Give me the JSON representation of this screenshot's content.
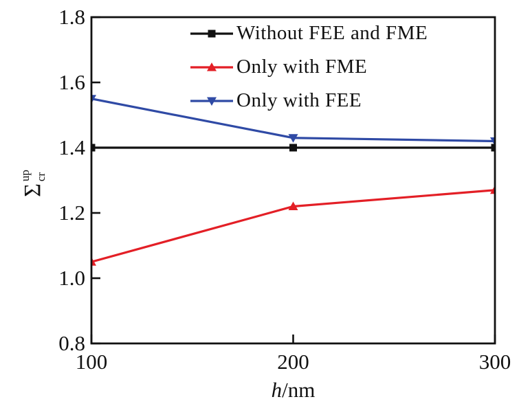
{
  "figure": {
    "background": "#ffffff",
    "text_color": "#111111"
  },
  "labels": {
    "xlabel_var": "h",
    "xlabel_unit": "/nm",
    "ylabel_base": "Σ",
    "ylabel_sup": "up",
    "ylabel_sub": "cr"
  },
  "chart_data": {
    "type": "line",
    "x": [
      100,
      200,
      300
    ],
    "series": [
      {
        "name": "Without FEE and FME",
        "color": "#111111",
        "marker": "square",
        "values": [
          1.4,
          1.4,
          1.4
        ]
      },
      {
        "name": "Only with FME",
        "color": "#e31f26",
        "marker": "triangle-up",
        "values": [
          1.05,
          1.22,
          1.27
        ]
      },
      {
        "name": "Only with FEE",
        "color": "#2f4aa5",
        "marker": "triangle-down",
        "values": [
          1.55,
          1.43,
          1.42
        ]
      }
    ],
    "title": "",
    "xlabel": "h/nm",
    "ylabel": "Σ_cr^up",
    "xlim": [
      100,
      300
    ],
    "ylim": [
      0.8,
      1.8
    ],
    "xticks": [
      100,
      200,
      300
    ],
    "yticks": [
      0.8,
      1.0,
      1.2,
      1.4,
      1.6,
      1.8
    ],
    "grid": false,
    "legend_position": "upper-center-inside",
    "legend_items": [
      "Without FEE and FME",
      "Only with FME",
      "Only with FEE"
    ]
  }
}
